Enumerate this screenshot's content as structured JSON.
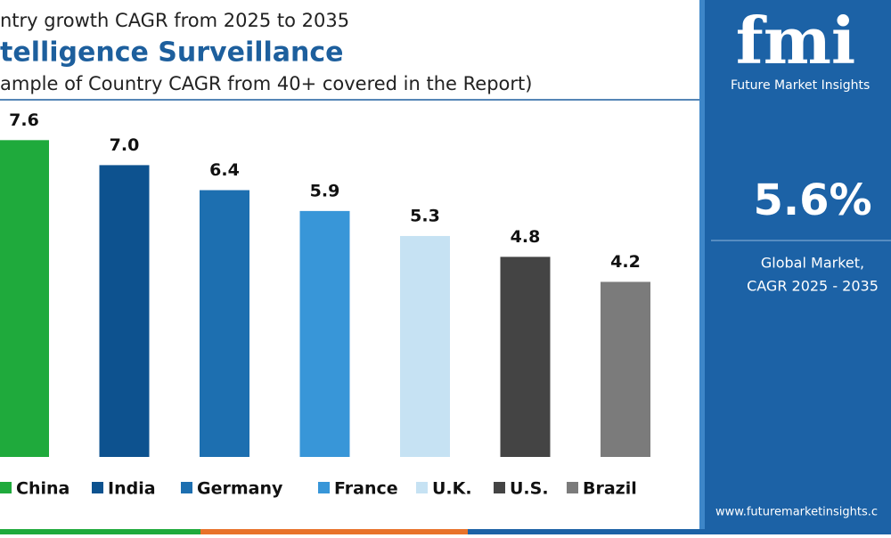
{
  "chart_data": {
    "type": "bar",
    "pretitle": "ntry growth CAGR from 2025 to 2035",
    "title": "telligence Surveillance",
    "subtitle": "ample of Country CAGR from 40+ covered in the Report)",
    "categories": [
      "China",
      "India",
      "Germany",
      "France",
      "U.K.",
      "U.S.",
      "Brazil"
    ],
    "values": [
      7.6,
      7.0,
      6.4,
      5.9,
      5.3,
      4.8,
      4.2
    ],
    "value_labels": [
      "7.6",
      "7.0",
      "6.4",
      "5.9",
      "5.3",
      "4.8",
      "4.2"
    ],
    "colors": [
      "#1faa3c",
      "#0d528f",
      "#1d6fb0",
      "#3896d8",
      "#c6e2f3",
      "#444444",
      "#7b7b7b"
    ]
  },
  "panel": {
    "logo": "fmi",
    "brand": "Future Market Insights",
    "value": "5.6%",
    "label_lines": [
      "Global Market,",
      "CAGR 2025 - 2035"
    ],
    "url": "www.futuremarketinsights.c"
  }
}
